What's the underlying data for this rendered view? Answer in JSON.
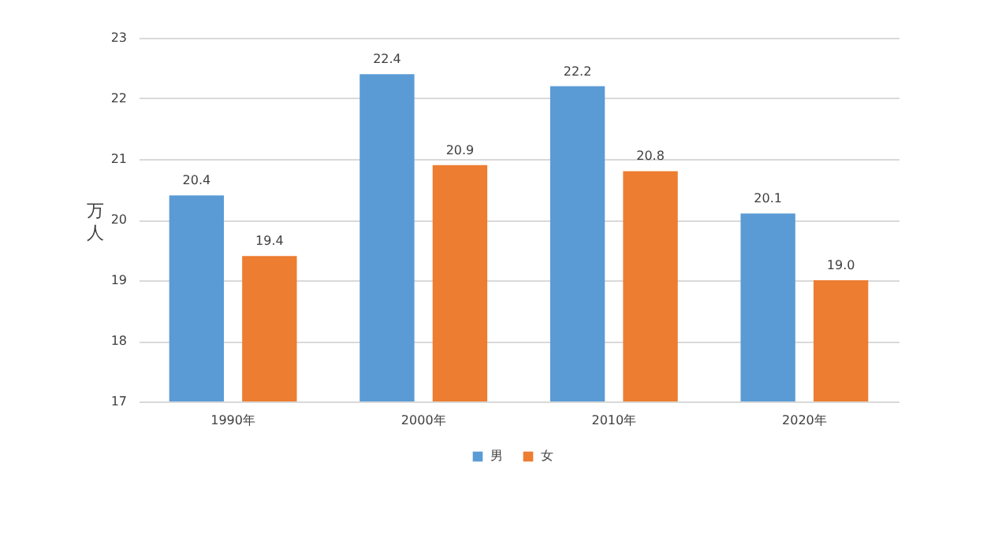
{
  "chart_data": {
    "type": "bar",
    "ylabel": "万人",
    "categories": [
      "1990年",
      "2000年",
      "2010年",
      "2020年"
    ],
    "series": [
      {
        "name": "男",
        "color": "#5b9bd5",
        "values": [
          20.4,
          22.4,
          22.2,
          20.1
        ],
        "value_labels": [
          "20.4",
          "22.4",
          "22.2",
          "20.1"
        ]
      },
      {
        "name": "女",
        "color": "#ed7d31",
        "values": [
          19.4,
          20.9,
          20.8,
          19.0
        ],
        "value_labels": [
          "19.4",
          "20.9",
          "20.8",
          "19.0"
        ]
      }
    ],
    "ylim": [
      17,
      23
    ],
    "yticks": [
      17,
      18,
      19,
      20,
      21,
      22,
      23
    ],
    "grid": "y",
    "legend": "bottom"
  }
}
